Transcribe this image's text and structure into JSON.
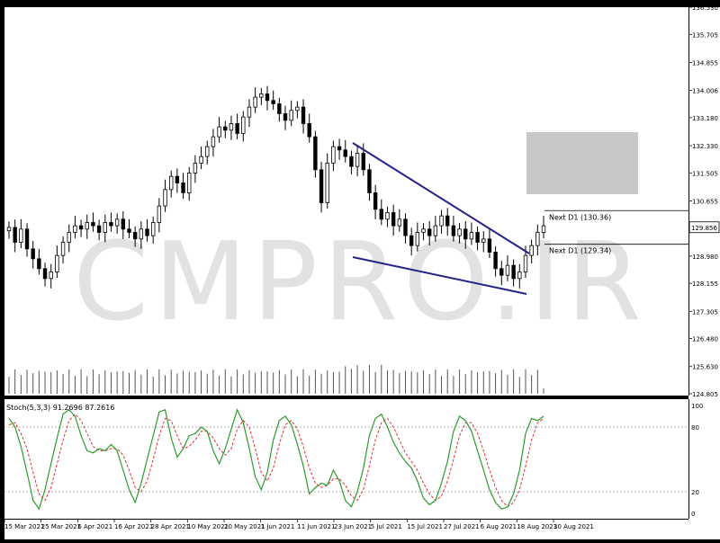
{
  "watermark": "CMPRO.IR",
  "levels": [
    {
      "label": "Next D1 (130.36)",
      "price": 130.36
    },
    {
      "label": "Next D1 (129.34)",
      "price": 129.34
    }
  ],
  "chart_data": {
    "type": "candlestick",
    "price_axis": {
      "ticks": [
        "136.530",
        "135.705",
        "134.855",
        "134.006",
        "133.180",
        "132.330",
        "131.505",
        "130.655",
        "129.856",
        "128.980",
        "128.155",
        "127.305",
        "126.480",
        "125.630",
        "124.805"
      ],
      "current": "129.856",
      "range": [
        124.805,
        136.53
      ]
    },
    "date_axis": [
      "15 Mar 2021",
      "25 Mar 2021",
      "6 Apr 2021",
      "16 Apr 2021",
      "28 Apr 2021",
      "10 May 2021",
      "20 May 2021",
      "1 Jun 2021",
      "11 Jun 2021",
      "23 Jun 2021",
      "5 Jul 2021",
      "15 Jul 2021",
      "27 Jul 2021",
      "6 Aug 2021",
      "18 Aug 2021",
      "30 Aug 2021"
    ],
    "closes": [
      129.85,
      129.4,
      129.8,
      129.2,
      128.9,
      128.6,
      128.3,
      128.5,
      129.0,
      129.4,
      129.7,
      129.9,
      129.8,
      130.0,
      129.9,
      129.7,
      130.0,
      129.9,
      130.1,
      129.8,
      129.7,
      129.5,
      129.8,
      129.6,
      130.0,
      130.5,
      131.0,
      131.4,
      131.2,
      130.9,
      131.5,
      131.8,
      132.0,
      132.3,
      132.6,
      132.9,
      132.8,
      133.0,
      132.7,
      133.2,
      133.5,
      133.8,
      133.9,
      133.7,
      133.6,
      133.3,
      133.1,
      133.4,
      133.5,
      133.0,
      132.6,
      131.6,
      130.6,
      131.8,
      132.3,
      132.2,
      132.0,
      131.7,
      132.1,
      131.6,
      130.9,
      130.4,
      130.1,
      130.3,
      129.9,
      130.1,
      129.6,
      129.3,
      129.7,
      129.8,
      129.6,
      129.9,
      130.2,
      129.9,
      129.6,
      129.8,
      129.5,
      129.7,
      129.4,
      129.5,
      129.1,
      128.6,
      128.4,
      128.7,
      128.3,
      128.5,
      129.0,
      129.3,
      129.7,
      129.9
    ],
    "oscillator": {
      "label": "Stoch(5,3,3) 91.2696 87.2616",
      "levels": [
        20,
        80
      ],
      "axis_ticks": [
        "100",
        "80",
        "20",
        "0"
      ],
      "k": [
        88,
        80,
        62,
        38,
        12,
        4,
        22,
        46,
        70,
        92,
        96,
        90,
        72,
        58,
        56,
        60,
        58,
        64,
        58,
        40,
        22,
        10,
        28,
        50,
        72,
        94,
        96,
        70,
        52,
        60,
        72,
        74,
        80,
        76,
        58,
        46,
        60,
        78,
        96,
        84,
        60,
        34,
        22,
        38,
        68,
        86,
        90,
        82,
        64,
        44,
        18,
        24,
        28,
        26,
        40,
        30,
        12,
        6,
        20,
        42,
        72,
        88,
        92,
        80,
        66,
        56,
        48,
        42,
        30,
        14,
        8,
        12,
        28,
        48,
        76,
        90,
        86,
        76,
        58,
        40,
        22,
        10,
        4,
        6,
        18,
        40,
        74,
        88,
        86,
        90
      ],
      "d": [
        82,
        84,
        74,
        60,
        38,
        18,
        12,
        24,
        46,
        68,
        86,
        92,
        86,
        74,
        62,
        58,
        58,
        60,
        60,
        54,
        40,
        24,
        20,
        30,
        50,
        72,
        88,
        86,
        72,
        60,
        62,
        68,
        76,
        76,
        70,
        60,
        54,
        60,
        78,
        86,
        80,
        60,
        38,
        30,
        42,
        64,
        82,
        86,
        78,
        62,
        42,
        28,
        24,
        26,
        32,
        32,
        26,
        16,
        12,
        22,
        44,
        68,
        84,
        88,
        80,
        68,
        56,
        48,
        40,
        28,
        18,
        12,
        16,
        30,
        50,
        72,
        84,
        84,
        74,
        58,
        40,
        24,
        12,
        6,
        10,
        22,
        44,
        68,
        84,
        88
      ]
    }
  }
}
